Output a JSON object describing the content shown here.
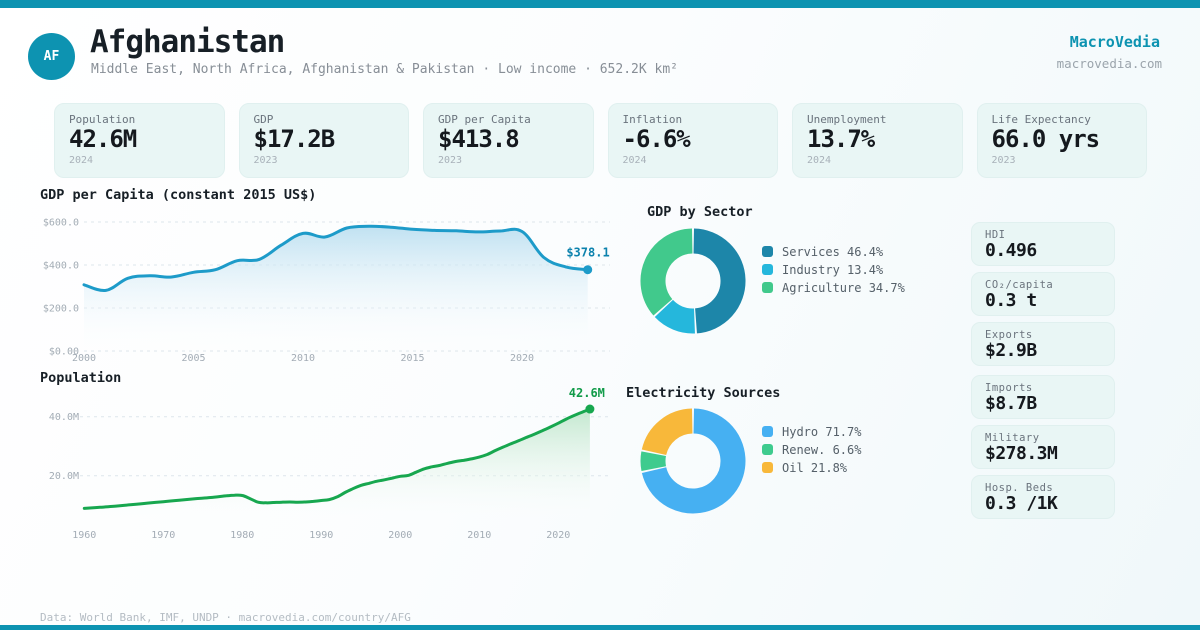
{
  "brand": {
    "name": "MacroVedia",
    "domain": "macrovedia.com"
  },
  "header": {
    "country_code": "AF",
    "title": "Afghanistan",
    "subtitle": "Middle East, North Africa, Afghanistan & Pakistan · Low income · 652.2K km²"
  },
  "stats": [
    {
      "label": "Population",
      "value": "42.6M",
      "year": "2024"
    },
    {
      "label": "GDP",
      "value": "$17.2B",
      "year": "2023"
    },
    {
      "label": "GDP per Capita",
      "value": "$413.8",
      "year": "2023"
    },
    {
      "label": "Inflation",
      "value": "-6.6%",
      "year": "2024"
    },
    {
      "label": "Unemployment",
      "value": "13.7%",
      "year": "2024"
    },
    {
      "label": "Life Expectancy",
      "value": "66.0 yrs",
      "year": "2023"
    }
  ],
  "side_stats": [
    {
      "label": "HDI",
      "value": "0.496"
    },
    {
      "label": "CO₂/capita",
      "value": "0.3 t"
    },
    {
      "label": "Exports",
      "value": "$2.9B"
    },
    {
      "label": "Imports",
      "value": "$8.7B"
    },
    {
      "label": "Military",
      "value": "$278.3M"
    },
    {
      "label": "Hosp. Beds",
      "value": "0.3 /1K"
    }
  ],
  "footer": {
    "text": "Data: World Bank, IMF, UNDP · macrovedia.com/country/AFG"
  },
  "colors": {
    "accent": "#0d93b1",
    "gdp_line": "#1d9bc9",
    "gdp_label": "#0c82ad",
    "gdp_fill_from": "#b9def0",
    "pop_line": "#17a74f",
    "pop_label": "#119b49",
    "pop_fill_from": "#bce5c9",
    "grid": "#dde5eb",
    "tick_text": "#a3acb5"
  },
  "chart_data": [
    {
      "id": "gdp-per-capita",
      "type": "area",
      "title": "GDP per Capita (constant 2015 US$)",
      "x": [
        2000,
        2001,
        2002,
        2003,
        2004,
        2005,
        2006,
        2007,
        2008,
        2009,
        2010,
        2011,
        2012,
        2013,
        2014,
        2015,
        2016,
        2017,
        2018,
        2019,
        2020,
        2021,
        2022,
        2023
      ],
      "values": [
        308,
        282,
        338,
        350,
        344,
        366,
        378,
        420,
        426,
        492,
        547,
        530,
        572,
        580,
        576,
        566,
        561,
        559,
        554,
        558,
        556,
        435,
        391,
        378.1
      ],
      "end_label": "$378.1",
      "xticks": [
        2000,
        2005,
        2010,
        2015,
        2020
      ],
      "yticks": [
        {
          "v": 0,
          "label": "$0.00"
        },
        {
          "v": 200,
          "label": "$200.0"
        },
        {
          "v": 400,
          "label": "$400.0"
        },
        {
          "v": 600,
          "label": "$600.0"
        }
      ],
      "ylim": [
        0,
        600
      ],
      "grid": true,
      "legend_position": "none"
    },
    {
      "id": "population",
      "type": "area",
      "title": "Population",
      "x": [
        1960,
        1962,
        1964,
        1966,
        1968,
        1970,
        1972,
        1974,
        1976,
        1978,
        1979,
        1980,
        1981,
        1982,
        1983,
        1984,
        1985,
        1986,
        1987,
        1988,
        1989,
        1990,
        1991,
        1992,
        1993,
        1994,
        1995,
        1996,
        1997,
        1998,
        1999,
        2000,
        2001,
        2002,
        2003,
        2004,
        2005,
        2006,
        2007,
        2008,
        2009,
        2010,
        2011,
        2012,
        2013,
        2014,
        2015,
        2016,
        2017,
        2018,
        2019,
        2020,
        2021,
        2022,
        2023,
        2024
      ],
      "values": [
        8.9,
        9.3,
        9.7,
        10.2,
        10.7,
        11.2,
        11.7,
        12.2,
        12.6,
        13.2,
        13.4,
        13.3,
        12.2,
        11.0,
        10.8,
        10.9,
        11.0,
        11.1,
        11.0,
        11.1,
        11.3,
        11.6,
        11.9,
        12.8,
        14.3,
        15.6,
        16.7,
        17.4,
        18.1,
        18.6,
        19.2,
        19.8,
        20.1,
        21.2,
        22.3,
        23.0,
        23.5,
        24.2,
        24.8,
        25.2,
        25.7,
        26.3,
        27.2,
        28.5,
        29.7,
        30.8,
        31.9,
        33.0,
        34.1,
        35.3,
        36.5,
        37.8,
        39.2,
        40.4,
        41.5,
        42.6
      ],
      "end_label": "42.6M",
      "xticks": [
        1960,
        1970,
        1980,
        1990,
        2000,
        2010,
        2020
      ],
      "yticks": [
        {
          "v": 20,
          "label": "20.0M"
        },
        {
          "v": 40,
          "label": "40.0M"
        }
      ],
      "ylim": [
        0,
        45
      ],
      "grid": true,
      "legend_position": "none"
    },
    {
      "id": "gdp-by-sector",
      "type": "pie",
      "title": "GDP by Sector",
      "slices": [
        {
          "label": "Services",
          "pct": 46.4,
          "pct_label": "46.4%",
          "color": "#1d86a9"
        },
        {
          "label": "Industry",
          "pct": 13.4,
          "pct_label": "13.4%",
          "color": "#25b7dc"
        },
        {
          "label": "Agriculture",
          "pct": 34.7,
          "pct_label": "34.7%",
          "color": "#41c98c"
        }
      ],
      "legend_position": "right"
    },
    {
      "id": "electricity-sources",
      "type": "pie",
      "title": "Electricity Sources",
      "slices": [
        {
          "label": "Hydro",
          "pct": 71.7,
          "pct_label": "71.7%",
          "color": "#46b0f2"
        },
        {
          "label": "Renew.",
          "pct": 6.6,
          "pct_label": "6.6%",
          "color": "#3ecb8e"
        },
        {
          "label": "Oil",
          "pct": 21.8,
          "pct_label": "21.8%",
          "color": "#f8b83a"
        }
      ],
      "legend_position": "right"
    }
  ]
}
